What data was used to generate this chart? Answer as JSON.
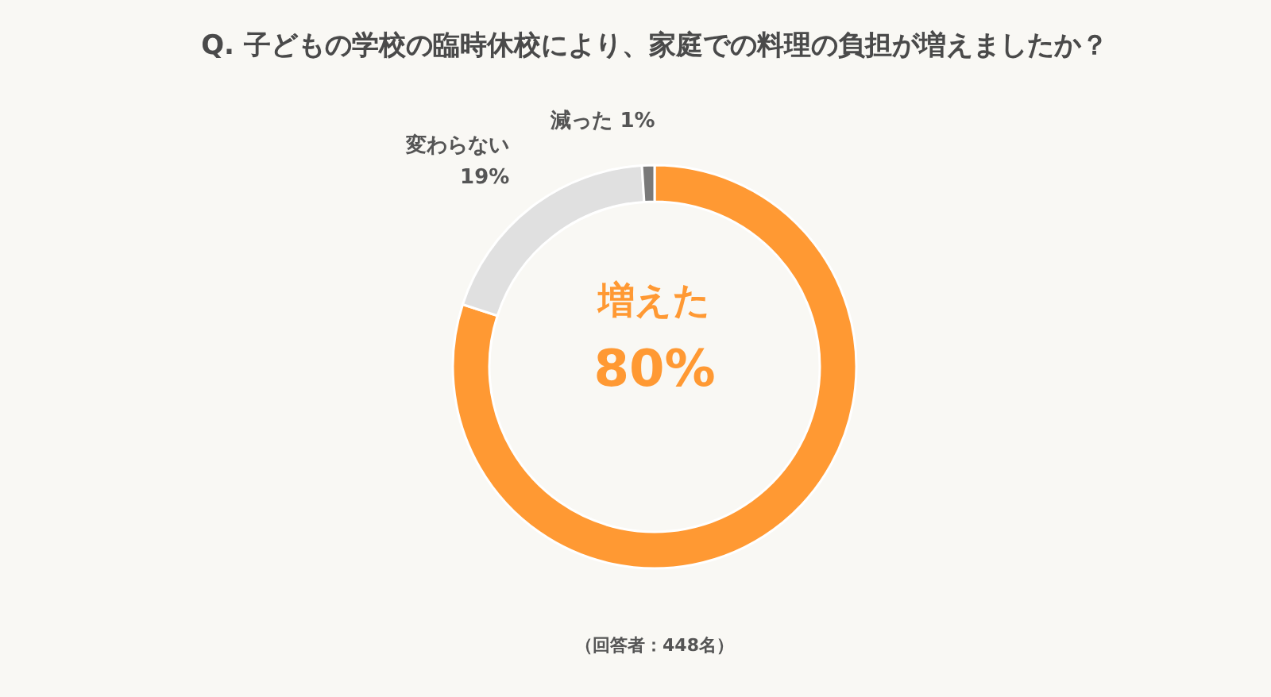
{
  "chart_data": {
    "type": "donut",
    "title": "Q. 子どもの学校の臨時休校により、家庭での料理の負担が増えましたか？",
    "categories": [
      "増えた",
      "変わらない",
      "減った"
    ],
    "values": [
      80,
      19,
      1
    ],
    "value_labels": [
      "80%",
      "19%",
      "1%"
    ],
    "colors": [
      "#ff9933",
      "#e0e0e0",
      "#7a7a7a"
    ],
    "annotations": [
      "（回答者：448名）"
    ]
  }
}
